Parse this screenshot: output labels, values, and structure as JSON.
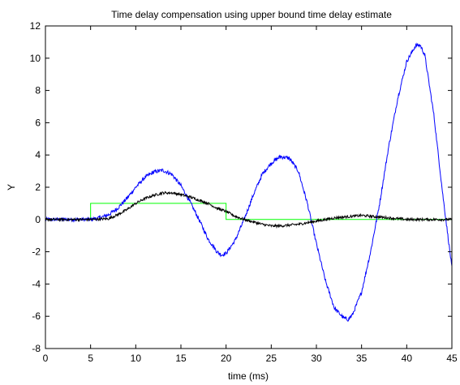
{
  "chart_data": {
    "type": "line",
    "title": "Time delay compensation using upper bound time delay estimate",
    "xlabel": "time (ms)",
    "ylabel": "Y",
    "xlim": [
      0,
      45
    ],
    "ylim": [
      -8,
      12
    ],
    "xticks": [
      0,
      5,
      10,
      15,
      20,
      25,
      30,
      35,
      40,
      45
    ],
    "yticks": [
      -8,
      -6,
      -4,
      -2,
      0,
      2,
      4,
      6,
      8,
      10,
      12
    ],
    "grid": false,
    "legend": "none",
    "series": [
      {
        "color": "#00ff00",
        "noise": 0,
        "x": [
          0,
          5,
          5,
          20,
          20,
          45
        ],
        "y": [
          0,
          0,
          1,
          1,
          0,
          0
        ]
      },
      {
        "color": "#0000ff",
        "noise": 0.12,
        "x": [
          0,
          5,
          6,
          7,
          8,
          9,
          10,
          11,
          12,
          13,
          14,
          15,
          16,
          17,
          18,
          19,
          19.5,
          20,
          21,
          22,
          23,
          24,
          25,
          26,
          27,
          28,
          29,
          30,
          31,
          32,
          33,
          33.5,
          34,
          35,
          36,
          37,
          38,
          39,
          40,
          41,
          41.5,
          42,
          43,
          44,
          45
        ],
        "y": [
          0,
          0,
          0.1,
          0.3,
          0.7,
          1.3,
          2.0,
          2.6,
          2.95,
          3.05,
          2.8,
          2.1,
          1.1,
          0.0,
          -1.2,
          -2.0,
          -2.2,
          -2.1,
          -1.3,
          0.0,
          1.5,
          2.8,
          3.5,
          3.9,
          3.8,
          3.0,
          1.0,
          -1.5,
          -3.8,
          -5.5,
          -6.1,
          -6.2,
          -5.9,
          -4.5,
          -2.0,
          1.0,
          4.5,
          7.5,
          9.8,
          10.8,
          10.8,
          10.2,
          6.5,
          1.5,
          -3.0
        ]
      },
      {
        "color": "#000000",
        "noise": 0.08,
        "x": [
          0,
          5,
          7,
          8,
          9,
          10,
          11,
          12,
          13,
          14,
          15,
          16,
          17,
          18,
          19,
          20,
          21,
          22,
          23,
          24,
          25,
          26,
          27,
          28,
          29,
          30,
          31,
          32,
          33,
          34,
          35,
          36,
          37,
          38,
          39,
          40,
          41,
          42,
          43,
          44,
          45
        ],
        "y": [
          0,
          0,
          0.05,
          0.3,
          0.6,
          1.0,
          1.3,
          1.5,
          1.65,
          1.65,
          1.55,
          1.4,
          1.2,
          1.0,
          0.7,
          0.5,
          0.2,
          0.0,
          -0.15,
          -0.3,
          -0.4,
          -0.4,
          -0.35,
          -0.3,
          -0.2,
          -0.1,
          0.0,
          0.1,
          0.15,
          0.2,
          0.25,
          0.2,
          0.15,
          0.1,
          0.05,
          0.0,
          0.0,
          0.0,
          0.0,
          0.0,
          0.0
        ]
      }
    ]
  }
}
